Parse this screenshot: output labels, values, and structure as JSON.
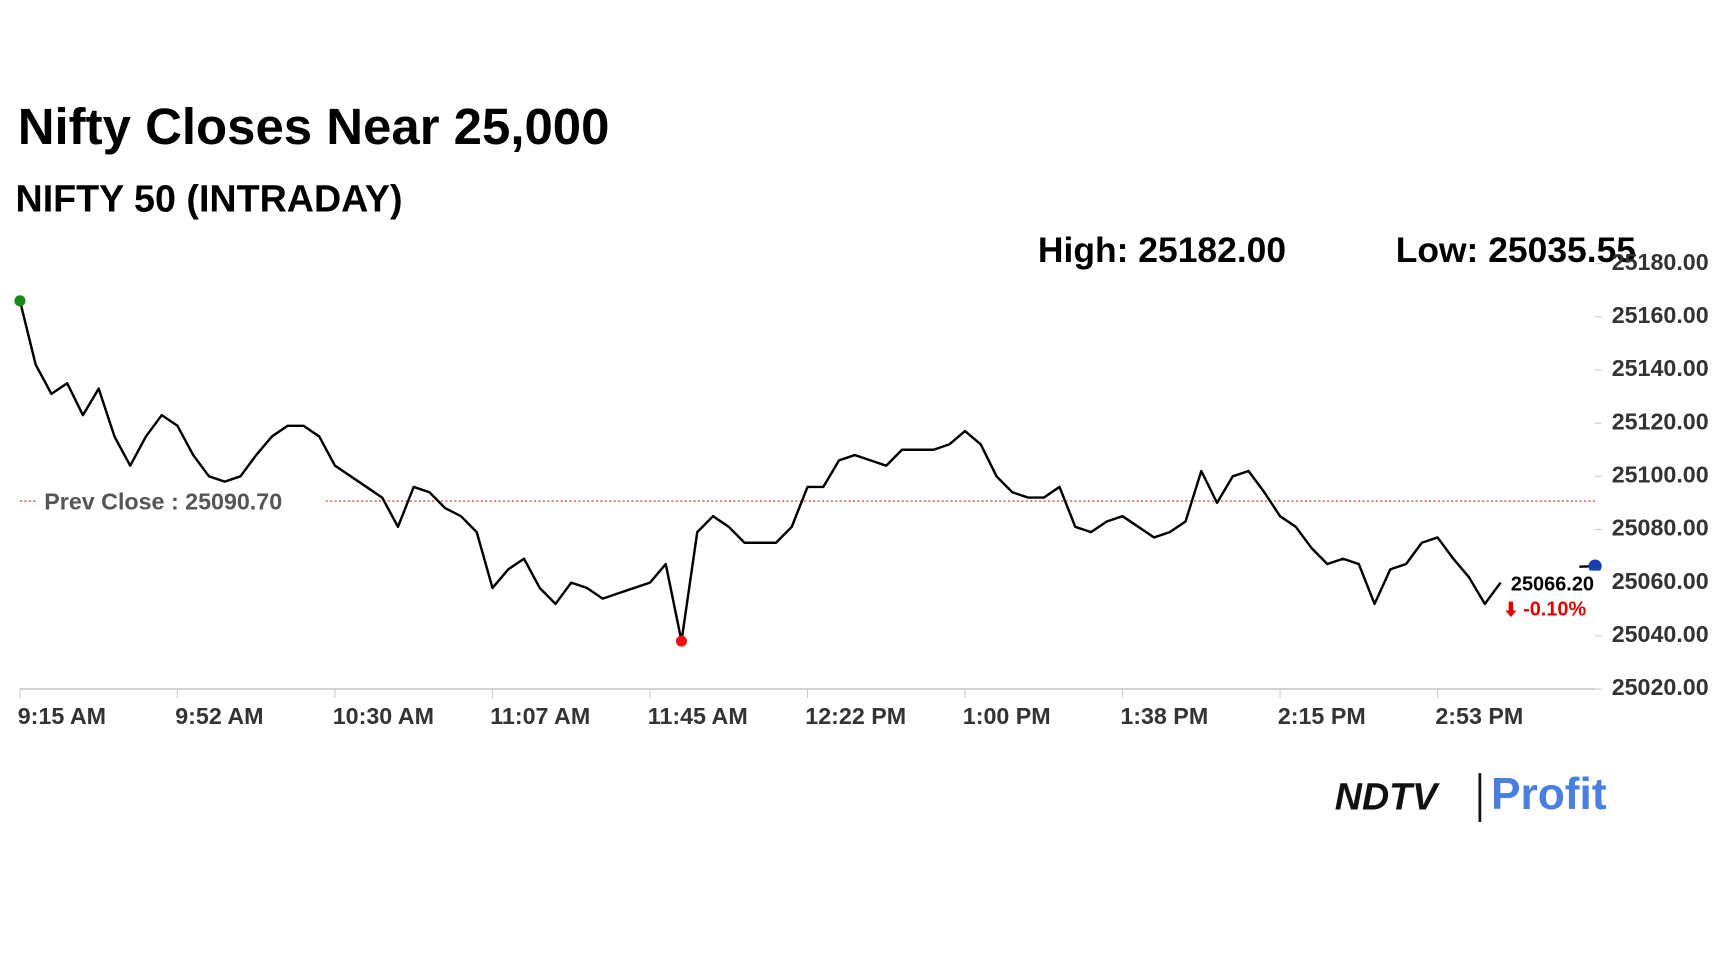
{
  "chart_data": {
    "type": "line",
    "title": "Nifty Closes Near 25,000",
    "subtitle": "NIFTY 50 (INTRADAY)",
    "high_label": "High: 25182.00",
    "low_label": "Low: 25035.55",
    "categories": [
      "9:15 AM",
      null,
      null,
      null,
      null,
      null,
      null,
      null,
      null,
      null,
      "9:52 AM",
      null,
      null,
      null,
      null,
      null,
      null,
      null,
      null,
      null,
      "10:30 AM",
      null,
      null,
      null,
      null,
      null,
      null,
      null,
      null,
      null,
      "11:07 AM",
      null,
      null,
      null,
      null,
      null,
      null,
      null,
      null,
      null,
      "11:45 AM",
      null,
      null,
      null,
      null,
      null,
      null,
      null,
      null,
      null,
      "12:22 PM",
      null,
      null,
      null,
      null,
      null,
      null,
      null,
      null,
      null,
      "1:00 PM",
      null,
      null,
      null,
      null,
      null,
      null,
      null,
      null,
      null,
      "1:38 PM",
      null,
      null,
      null,
      null,
      null,
      null,
      null,
      null,
      null,
      "2:15 PM",
      null,
      null,
      null,
      null,
      null,
      null,
      null,
      null,
      null,
      "2:53 PM",
      null,
      null,
      null,
      null,
      null,
      null,
      null,
      null,
      null,
      null
    ],
    "series": [
      {
        "name": "NIFTY 50",
        "color": "#000000",
        "values": [
          25166,
          25142,
          25131,
          25135,
          25123,
          25133,
          25115,
          25104,
          25115,
          25123,
          25119,
          25108,
          25100,
          25098,
          25100,
          25108,
          25115,
          25119,
          25119,
          25115,
          25104,
          25100,
          25096,
          25092,
          25081,
          25096,
          25094,
          25088,
          25085,
          25079,
          25058,
          25065,
          25069,
          25058,
          25052,
          25060,
          25058,
          25054,
          25056,
          25058,
          25060,
          25067,
          25038,
          25079,
          25085,
          25081,
          25075,
          25075,
          25075,
          25081,
          25096,
          25096,
          25106,
          25108,
          25106,
          25104,
          25110,
          25110,
          25110,
          25112,
          25117,
          25112,
          25100,
          25094,
          25092,
          25092,
          25096,
          25081,
          25079,
          25083,
          25085,
          25081,
          25077,
          25079,
          25083,
          25102,
          25090,
          25100,
          25102,
          25094,
          25085,
          25081,
          25073,
          25067,
          25069,
          25067,
          25052,
          25065,
          25067,
          25075,
          25077,
          25069,
          25062,
          25052,
          25060,
          null,
          null,
          null,
          null,
          25066,
          25066.2
        ]
      }
    ],
    "ylim": [
      25020,
      25180
    ],
    "yticks": [
      {
        "value": 25020,
        "label": "25020.00"
      },
      {
        "value": 25040,
        "label": "25040.00"
      },
      {
        "value": 25060,
        "label": "25060.00"
      },
      {
        "value": 25080,
        "label": "25080.00"
      },
      {
        "value": 25100,
        "label": "25100.00"
      },
      {
        "value": 25120,
        "label": "25120.00"
      },
      {
        "value": 25140,
        "label": "25140.00"
      },
      {
        "value": 25160,
        "label": "25160.00"
      },
      {
        "value": 25180,
        "label": "25180.00"
      }
    ],
    "prev_close": 25090.7,
    "prev_close_label": "Prev Close : 25090.70",
    "prev_close_color": "#c0392b",
    "last_value_label": "25066.20",
    "change_label": "-0.10%",
    "change_color": "#e00000",
    "start_dot_color": "#1a8a1a",
    "low_dot_color": "#ee1111",
    "end_dot_color": "#1a3fb0"
  },
  "brand": {
    "left": "NDTV",
    "right": "Profit"
  }
}
